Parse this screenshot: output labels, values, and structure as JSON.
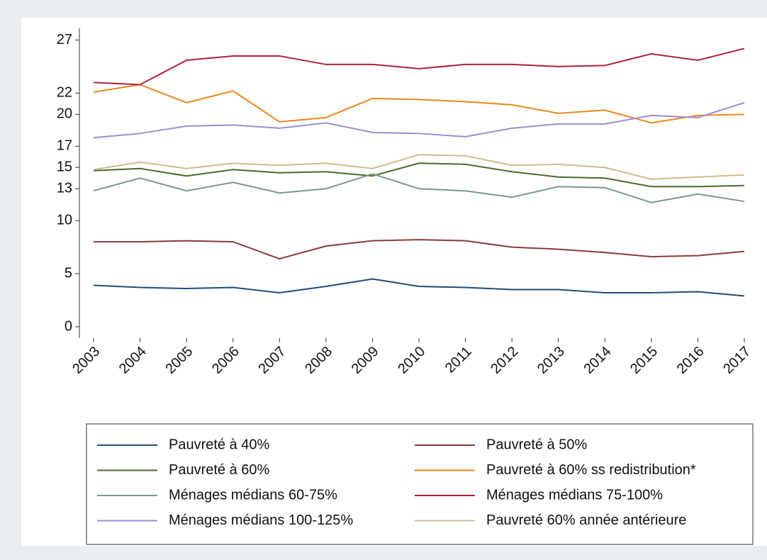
{
  "chart_data": {
    "type": "line",
    "categories": [
      "2003",
      "2004",
      "2005",
      "2006",
      "2007",
      "2008",
      "2009",
      "2010",
      "2011",
      "2012",
      "2013",
      "2014",
      "2015",
      "2016",
      "2017"
    ],
    "ylim": [
      -1.07,
      28.1
    ],
    "yticks": [
      0,
      5,
      10,
      13,
      15,
      17,
      20,
      22,
      27
    ],
    "series": [
      {
        "name": "Pauvreté à 40%",
        "color": "#1f4e79",
        "values": [
          3.9,
          3.7,
          3.6,
          3.7,
          3.2,
          3.8,
          4.5,
          3.8,
          3.7,
          3.5,
          3.5,
          3.2,
          3.2,
          3.3,
          2.9
        ]
      },
      {
        "name": "Pauvreté à 50%",
        "color": "#8b3a3a",
        "values": [
          8.0,
          8.0,
          8.1,
          8.0,
          6.4,
          7.6,
          8.1,
          8.2,
          8.1,
          7.5,
          7.3,
          7.0,
          6.6,
          6.7,
          7.1
        ]
      },
      {
        "name": "Pauvreté à 60%",
        "color": "#4a6b2a",
        "values": [
          14.7,
          14.9,
          14.2,
          14.8,
          14.5,
          14.6,
          14.2,
          15.4,
          15.3,
          14.6,
          14.1,
          14.0,
          13.2,
          13.2,
          13.3
        ]
      },
      {
        "name": "Pauvreté à 60% ss redistribution*",
        "color": "#e8891c",
        "values": [
          22.1,
          22.8,
          21.1,
          22.2,
          19.3,
          19.7,
          21.5,
          21.4,
          21.2,
          20.9,
          20.1,
          20.4,
          19.2,
          19.9,
          20.0
        ]
      },
      {
        "name": "Ménages médians 60-75%",
        "color": "#7a9a8a",
        "values": [
          12.8,
          14.0,
          12.8,
          13.6,
          12.6,
          13.0,
          14.4,
          13.0,
          12.8,
          12.2,
          13.2,
          13.1,
          11.7,
          12.5,
          11.8
        ]
      },
      {
        "name": "Ménages médians 75-100%",
        "color": "#b0203a",
        "values": [
          23.0,
          22.8,
          25.1,
          25.5,
          25.5,
          24.7,
          24.7,
          24.3,
          24.7,
          24.7,
          24.5,
          24.6,
          25.7,
          25.1,
          26.2
        ]
      },
      {
        "name": "Ménages médians 100-125%",
        "color": "#9a8fd0",
        "values": [
          17.8,
          18.2,
          18.9,
          19.0,
          18.7,
          19.2,
          18.3,
          18.2,
          17.9,
          18.7,
          19.1,
          19.1,
          19.9,
          19.7,
          21.1
        ]
      },
      {
        "name": "Pauvreté 60% année antérieure",
        "color": "#c8c08a",
        "values": [
          14.8,
          15.5,
          14.9,
          15.4,
          15.2,
          15.4,
          14.9,
          16.2,
          16.1,
          15.2,
          15.3,
          15.0,
          13.9,
          14.1,
          14.3
        ]
      }
    ]
  }
}
